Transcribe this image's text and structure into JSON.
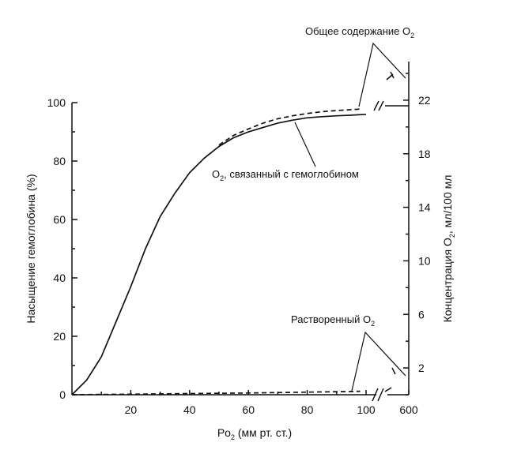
{
  "chart_data": {
    "type": "line",
    "xlabel": {
      "main": "Po",
      "sub": "2",
      "rest": " (мм рт. ст.)"
    },
    "ylabel_left": "Насыщение гемоглобина (%)",
    "ylabel_right": {
      "main": "Концентрация O",
      "sub": "2",
      "rest": ", мл/100 мл"
    },
    "x_ticks": [
      20,
      40,
      60,
      80,
      100
    ],
    "x_break_tick": 600,
    "xlim": [
      0,
      100
    ],
    "y_left_ticks": [
      0,
      20,
      40,
      60,
      80,
      100
    ],
    "ylim_left": [
      0,
      100
    ],
    "y_right_ticks": [
      2,
      6,
      10,
      14,
      18,
      22
    ],
    "ylim_right": [
      0,
      24
    ],
    "grid": false,
    "series": [
      {
        "name": "O2, связанный с гемоглобином",
        "style": "solid",
        "x": [
          0,
          5,
          10,
          15,
          20,
          25,
          30,
          35,
          40,
          45,
          50,
          55,
          60,
          65,
          70,
          75,
          80,
          85,
          90,
          95,
          100
        ],
        "y": [
          0,
          5,
          13,
          25,
          37,
          50,
          61,
          69,
          76,
          81,
          85,
          88,
          90,
          91.5,
          93,
          94,
          94.8,
          95.2,
          95.5,
          95.7,
          96
        ]
      },
      {
        "name": "Общее содержание O2",
        "style": "dashed",
        "x": [
          50,
          55,
          60,
          65,
          70,
          75,
          80,
          85,
          90,
          95,
          98
        ],
        "y": [
          85.5,
          88.8,
          91,
          93,
          94.5,
          95.5,
          96.3,
          96.9,
          97.3,
          97.6,
          97.8
        ]
      },
      {
        "name": "Растворенный O2",
        "style": "dashed",
        "x": [
          0,
          20,
          40,
          60,
          80,
          95,
          98
        ],
        "y": [
          0,
          0.2,
          0.4,
          0.6,
          0.9,
          1.1,
          1.2
        ]
      }
    ],
    "annotations": [
      {
        "text_main": "Общее содержание O",
        "text_sub": "2",
        "target": "total"
      },
      {
        "text_main": "O",
        "text_sub": "2",
        "text_rest": ", связанный с гемоглобином",
        "target": "bound"
      },
      {
        "text_main": "Растворенный O",
        "text_sub": "2",
        "target": "dissolved"
      }
    ]
  }
}
